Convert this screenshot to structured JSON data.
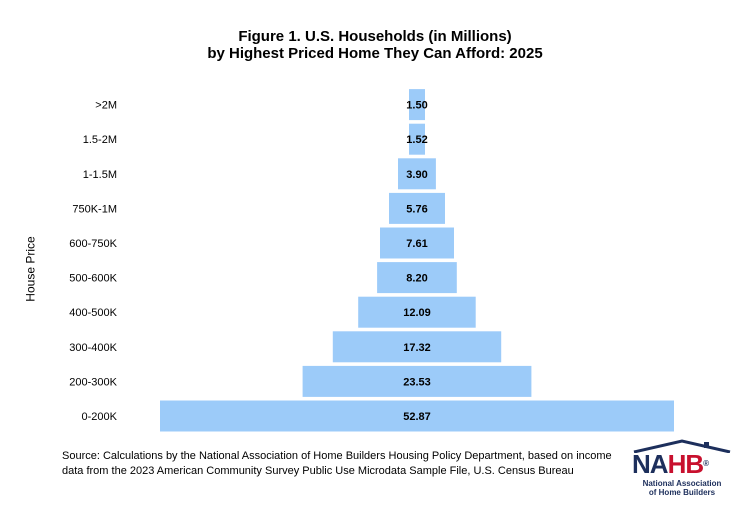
{
  "chart_data": {
    "type": "bar",
    "orientation": "horizontal-centered",
    "title": "Figure 1. U.S. Households (in Millions)",
    "subtitle": "by Highest Priced Home They Can Afford: 2025",
    "ylabel": "House Price",
    "xlabel": "",
    "categories": [
      "0-200K",
      "200-300K",
      "300-400K",
      "400-500K",
      "500-600K",
      "600-750K",
      "750K-1M",
      "1-1.5M",
      "1.5-2M",
      ">2M"
    ],
    "values": [
      52.87,
      23.53,
      17.32,
      12.09,
      8.2,
      7.61,
      5.76,
      3.9,
      1.52,
      1.5
    ],
    "value_labels": [
      "52.87",
      "23.53",
      "17.32",
      "12.09",
      "8.20",
      "7.61",
      "5.76",
      "3.90",
      "1.52",
      "1.50"
    ],
    "bar_color": "#9ccbf9",
    "grid": false,
    "legend": "none"
  },
  "source": "Source: Calculations by the National Association of Home Builders Housing Policy Department, based on income data from the 2023 American Community Survey Public Use Microdata Sample File, U.S. Census Bureau",
  "logo": {
    "word_na": "NA",
    "word_hb": "HB",
    "registered": "®",
    "subtitle_line1": "National Association",
    "subtitle_line2": "of Home Builders",
    "navy": "#1d2f5c",
    "red": "#c8102e"
  }
}
